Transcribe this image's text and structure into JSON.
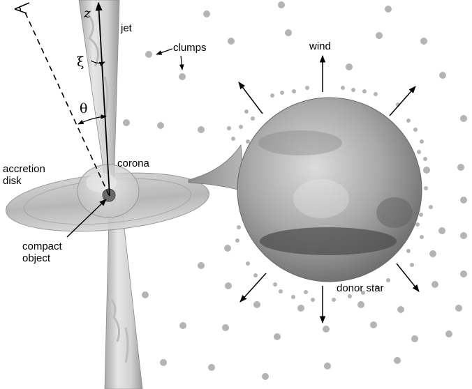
{
  "labels": {
    "z": "z",
    "jet": "jet",
    "xi": "ξ",
    "theta": "θ",
    "clumps": "clumps",
    "wind": "wind",
    "corona": "corona",
    "accretion": "accretion",
    "disk": "disk",
    "compact": "compact",
    "object": "object",
    "donor_star": "donor star"
  },
  "colors": {
    "jet": "#d0d0d0",
    "disk": "#b8b8b8",
    "star": "#9c9c9c",
    "clump": "#b4b4b4",
    "ink": "#000000"
  }
}
